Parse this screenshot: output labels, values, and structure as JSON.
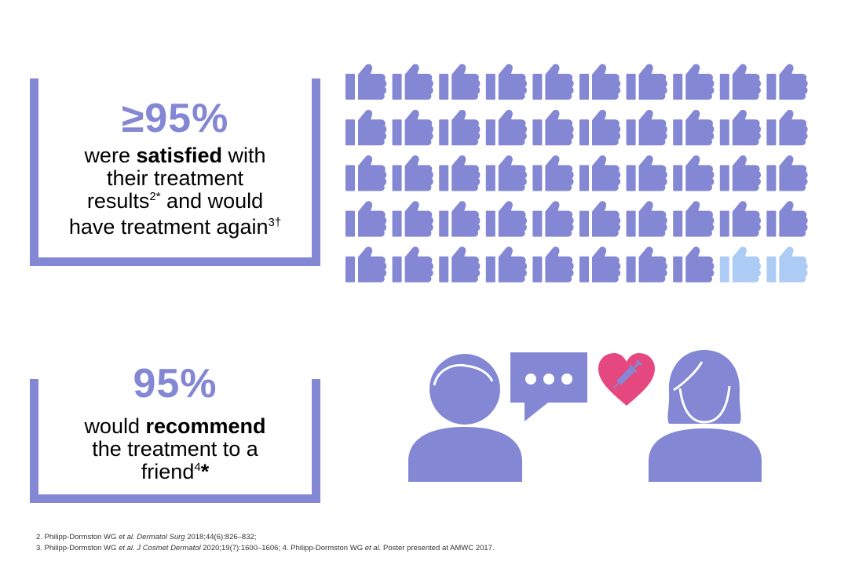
{
  "colors": {
    "accent": "#8387d4",
    "thumb_filled": "#8387d4",
    "thumb_light": "#acccf6",
    "heart": "#e5487f",
    "text": "#000000"
  },
  "stat1": {
    "value": "≥95%",
    "line1_pre": "were ",
    "line1_bold": "satisfied",
    "line1_post": " with",
    "line2": "their treatment",
    "line3_pre": "results",
    "line3_sup": "2*",
    "line3_post": " and would",
    "line4_pre": "have treatment again",
    "line4_sup": "3†"
  },
  "stat2": {
    "value": "95%",
    "line1_pre": "would ",
    "line1_bold": "recommend",
    "line2": "the treatment to a",
    "line3_pre": "friend",
    "line3_sup": "4",
    "line3_bold": "*"
  },
  "thumbs_grid": {
    "icon": "thumbs-up-icon",
    "rows": 5,
    "columns": 10,
    "filled_fraction": 0.95
  },
  "illustration": {
    "left_person_icon": "person-icon",
    "speech_icon": "speech-bubble-icon",
    "heart_icon": "heart-syringe-icon",
    "right_person_icon": "person-female-icon"
  },
  "references": {
    "ref2_a": "2. Philipp-Dormston WG ",
    "ref2_etal": "et al.",
    "ref2_journal": " Dermatol Surg",
    "ref2_b": " 2018;44(6):826–832;",
    "ref3_a": "3. Philipp-Dormston WG ",
    "ref3_etal": "et al.",
    "ref3_journal": " J Cosmet Dermatol",
    "ref3_b": " 2020;19(7):1600–1606; 4. Philipp-Dormston WG ",
    "ref4_etal": "et al.",
    "ref4_b": " Poster presented at AMWC 2017."
  }
}
